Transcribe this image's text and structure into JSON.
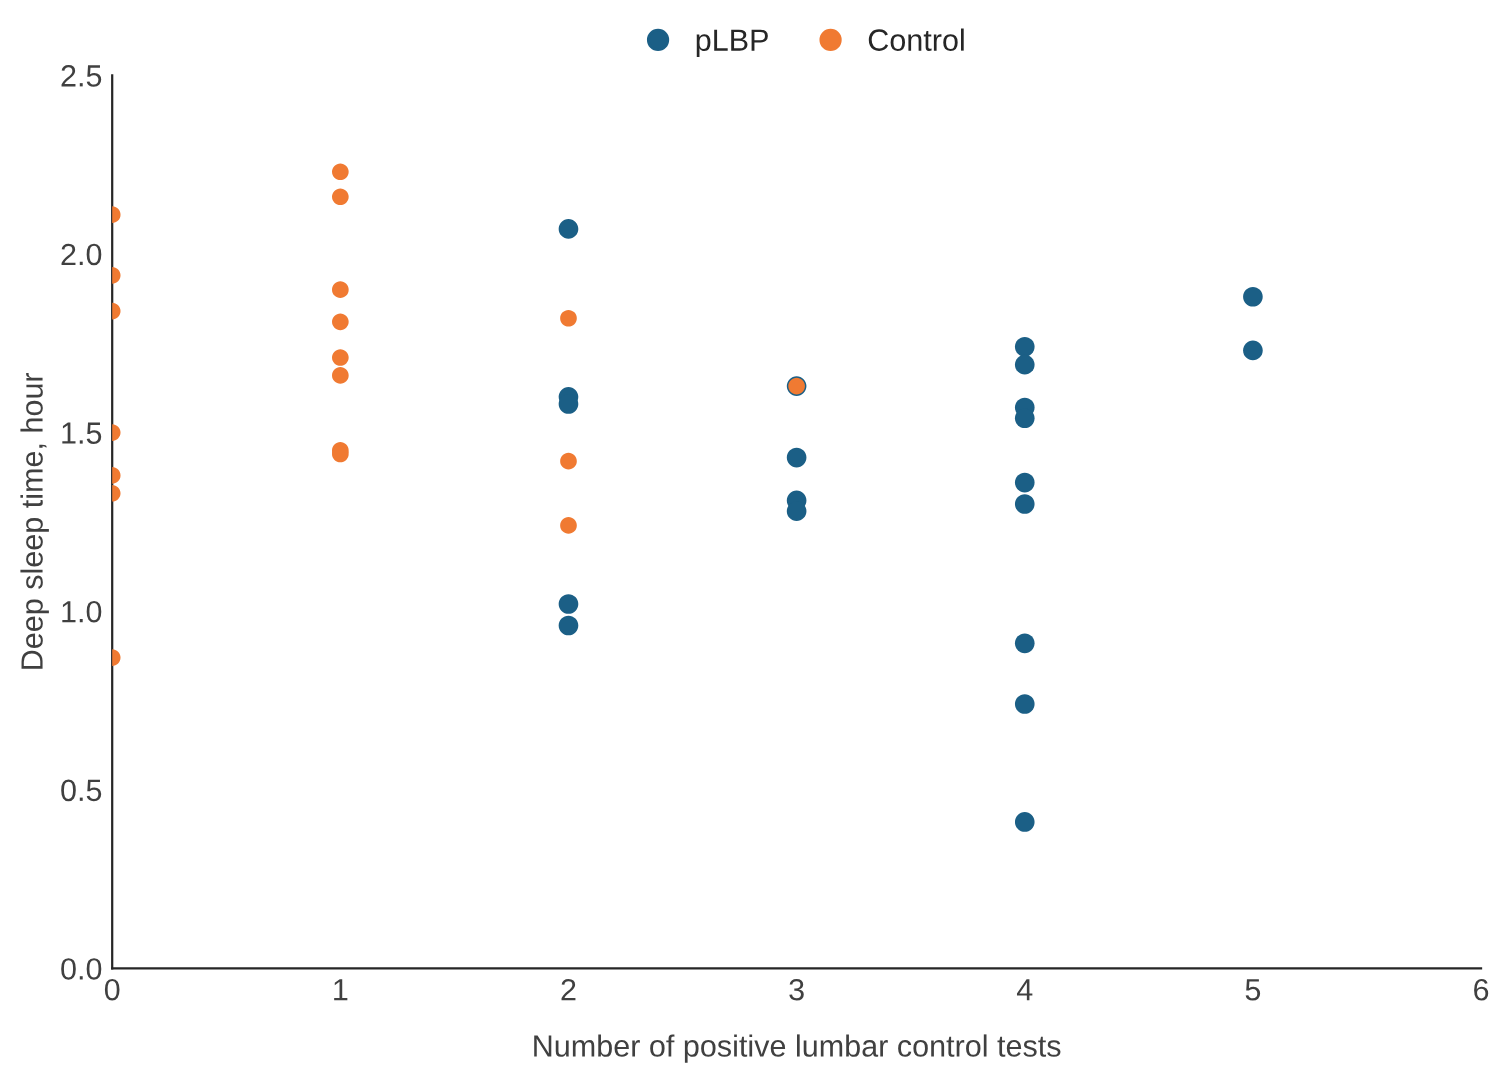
{
  "chart_data": {
    "type": "scatter",
    "xlabel": "Number of positive lumbar control tests",
    "ylabel": "Deep sleep time, hour",
    "series": [
      {
        "name": "pLBP",
        "color": "#1b5f86",
        "x": [
          2,
          2,
          2,
          2,
          2,
          3,
          3,
          3,
          3,
          4,
          4,
          4,
          4,
          4,
          4,
          4,
          4,
          4,
          5,
          5
        ],
        "values": [
          2.07,
          1.6,
          1.58,
          1.02,
          0.96,
          1.63,
          1.43,
          1.31,
          1.28,
          1.74,
          1.69,
          1.57,
          1.54,
          1.36,
          1.3,
          0.91,
          0.74,
          0.41,
          1.88,
          1.73
        ]
      },
      {
        "name": "Control",
        "color": "#f07a32",
        "x": [
          0,
          0,
          0,
          0,
          0,
          0,
          0,
          1,
          1,
          1,
          1,
          1,
          1,
          1,
          1,
          2,
          2,
          2,
          3
        ],
        "values": [
          2.11,
          1.94,
          1.84,
          1.5,
          1.38,
          1.33,
          0.87,
          2.23,
          2.16,
          1.9,
          1.81,
          1.71,
          1.66,
          1.45,
          1.44,
          1.82,
          1.42,
          1.24,
          1.63
        ]
      }
    ],
    "xlim": [
      0,
      6
    ],
    "xticks": [
      0,
      1,
      2,
      3,
      4,
      5,
      6
    ],
    "ylim": [
      0,
      2.5
    ],
    "yticks": [
      {
        "value": 0,
        "label": "0.0"
      },
      {
        "value": 0.5,
        "label": "0.5"
      },
      {
        "value": 1,
        "label": "1.0"
      },
      {
        "value": 1.5,
        "label": "1.5"
      },
      {
        "value": 2,
        "label": "2.0"
      },
      {
        "value": 2.5,
        "label": "2.5"
      }
    ],
    "grid": false,
    "legend": "top",
    "marker": "circle"
  }
}
